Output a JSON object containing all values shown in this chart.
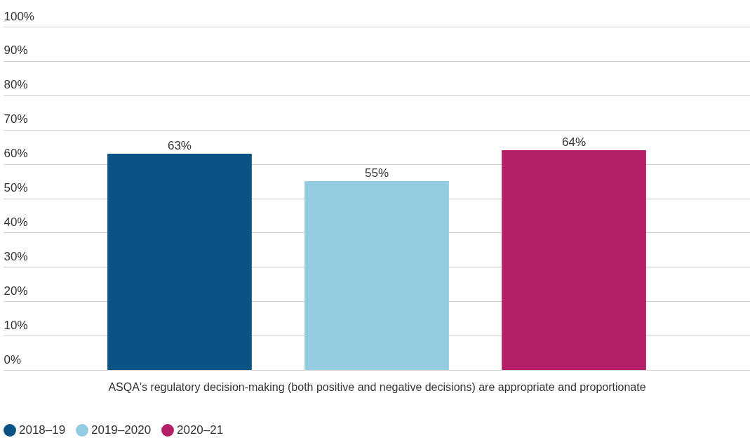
{
  "chart_data": {
    "type": "bar",
    "xlabel": "ASQA's regulatory decision-making (both positive and negative decisions) are appropriate and proportionate",
    "categories": [
      null
    ],
    "series": [
      {
        "name": "2018–19",
        "color": "#0a5384",
        "values": [
          63
        ],
        "value_labels": [
          "63%"
        ]
      },
      {
        "name": "2019–2020",
        "color": "#93cce1",
        "values": [
          55
        ],
        "value_labels": [
          "55%"
        ]
      },
      {
        "name": "2020–21",
        "color": "#b41f68",
        "values": [
          64
        ],
        "value_labels": [
          "64%"
        ]
      }
    ],
    "ylim": [
      0,
      100
    ],
    "yticks": [
      {
        "value": 0,
        "label": "0%"
      },
      {
        "value": 10,
        "label": "10%"
      },
      {
        "value": 20,
        "label": "20%"
      },
      {
        "value": 30,
        "label": "30%"
      },
      {
        "value": 40,
        "label": "40%"
      },
      {
        "value": 50,
        "label": "50%"
      },
      {
        "value": 60,
        "label": "60%"
      },
      {
        "value": 70,
        "label": "70%"
      },
      {
        "value": 80,
        "label": "80%"
      },
      {
        "value": 90,
        "label": "90%"
      },
      {
        "value": 100,
        "label": "100%"
      }
    ],
    "grid": "y",
    "legend": "bottom left"
  }
}
